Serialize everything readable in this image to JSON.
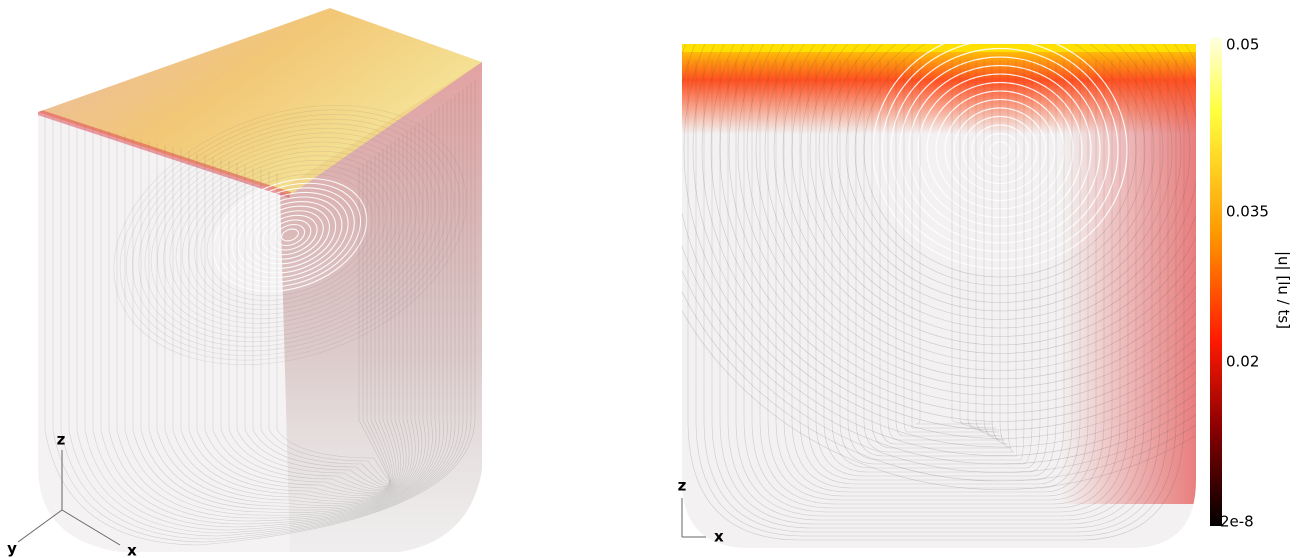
{
  "left_view": {
    "axes": [
      "z",
      "y",
      "x"
    ]
  },
  "right_view": {
    "axes": [
      "z",
      "x"
    ]
  },
  "colorbar": {
    "label": "|u| [lu / ts]",
    "ticks": [
      "0.05",
      "0.035",
      "0.02",
      "2e-8"
    ]
  }
}
